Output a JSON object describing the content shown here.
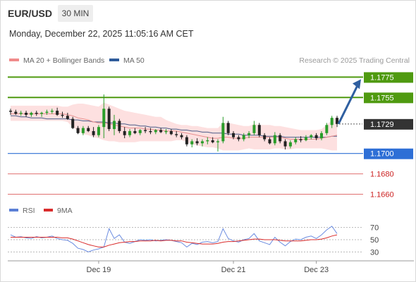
{
  "header": {
    "symbol": "EUR/USD",
    "timeframe": "30 MIN",
    "datetime": "Monday, December 22, 2025 11:05:16 AM CET",
    "credit": "Research © 2025 Trading Central"
  },
  "legend": {
    "ma20_label": "MA 20 + Bollinger Bands",
    "ma50_label": "MA 50",
    "ma20_color": "#f08a8a",
    "ma50_color": "#2e5b9a"
  },
  "rsi_legend": {
    "rsi_label": "RSI",
    "ma9_label": "9MA",
    "rsi_color": "#5b7fd6",
    "ma9_color": "#d92b2b"
  },
  "colors": {
    "up": "#2a9d2a",
    "down": "#222222",
    "target": "#4f9a10",
    "pivot": "#2e6fd6",
    "support": "#e07070",
    "arrow": "#2f5fa0",
    "current": "#333333"
  },
  "chart_data": [
    {
      "type": "line",
      "title": "EUR/USD",
      "series_type": "candlestick",
      "ylim": [
        1.1652,
        1.1785
      ],
      "xtick_labels": [
        "Dec 19",
        "Dec 21",
        "Dec 23"
      ],
      "xtick_positions": [
        17,
        43,
        59
      ],
      "candles": [
        [
          1.1742,
          1.1744,
          1.1738,
          1.1741
        ],
        [
          1.1741,
          1.1743,
          1.1738,
          1.1739
        ],
        [
          1.1739,
          1.1742,
          1.1737,
          1.174
        ],
        [
          1.174,
          1.1742,
          1.1736,
          1.1738
        ],
        [
          1.1738,
          1.1741,
          1.1736,
          1.174
        ],
        [
          1.174,
          1.1742,
          1.1737,
          1.1739
        ],
        [
          1.1739,
          1.1741,
          1.1736,
          1.174
        ],
        [
          1.174,
          1.1743,
          1.1738,
          1.1741
        ],
        [
          1.1741,
          1.1744,
          1.1739,
          1.1742
        ],
        [
          1.1742,
          1.1745,
          1.1737,
          1.1738
        ],
        [
          1.1738,
          1.1741,
          1.1735,
          1.1737
        ],
        [
          1.1737,
          1.174,
          1.1733,
          1.1734
        ],
        [
          1.1734,
          1.1736,
          1.1724,
          1.1725
        ],
        [
          1.1725,
          1.1727,
          1.1719,
          1.172
        ],
        [
          1.172,
          1.1727,
          1.1718,
          1.1725
        ],
        [
          1.1725,
          1.1727,
          1.1721,
          1.1722
        ],
        [
          1.1722,
          1.1726,
          1.1716,
          1.1718
        ],
        [
          1.1718,
          1.1728,
          1.1716,
          1.1726
        ],
        [
          1.1726,
          1.1758,
          1.1715,
          1.1744
        ],
        [
          1.1744,
          1.1746,
          1.1722,
          1.1724
        ],
        [
          1.1724,
          1.1738,
          1.1718,
          1.1732
        ],
        [
          1.1732,
          1.1734,
          1.172,
          1.1722
        ],
        [
          1.1722,
          1.1726,
          1.1715,
          1.1718
        ],
        [
          1.1718,
          1.1724,
          1.1716,
          1.1722
        ],
        [
          1.1722,
          1.1725,
          1.1719,
          1.172
        ],
        [
          1.172,
          1.1724,
          1.1718,
          1.1723
        ],
        [
          1.1723,
          1.1726,
          1.172,
          1.1722
        ],
        [
          1.1722,
          1.1725,
          1.1719,
          1.1721
        ],
        [
          1.1721,
          1.1724,
          1.1719,
          1.1723
        ],
        [
          1.1723,
          1.1725,
          1.172,
          1.1721
        ],
        [
          1.1721,
          1.1724,
          1.1719,
          1.1722
        ],
        [
          1.1722,
          1.1724,
          1.1718,
          1.1719
        ],
        [
          1.1719,
          1.1722,
          1.1716,
          1.1718
        ],
        [
          1.1718,
          1.172,
          1.1714,
          1.1716
        ],
        [
          1.1716,
          1.1718,
          1.1707,
          1.1709
        ],
        [
          1.1709,
          1.1714,
          1.1706,
          1.1712
        ],
        [
          1.1712,
          1.1715,
          1.1708,
          1.171
        ],
        [
          1.171,
          1.1714,
          1.1707,
          1.1712
        ],
        [
          1.1712,
          1.1716,
          1.1709,
          1.1713
        ],
        [
          1.1713,
          1.1716,
          1.171,
          1.1711
        ],
        [
          1.1711,
          1.1714,
          1.1702,
          1.1712
        ],
        [
          1.1712,
          1.1736,
          1.171,
          1.173
        ],
        [
          1.173,
          1.1732,
          1.1718,
          1.172
        ],
        [
          1.172,
          1.1722,
          1.1714,
          1.1716
        ],
        [
          1.1716,
          1.1718,
          1.1712,
          1.1714
        ],
        [
          1.1714,
          1.172,
          1.1712,
          1.1718
        ],
        [
          1.1718,
          1.1722,
          1.1715,
          1.172
        ],
        [
          1.172,
          1.1732,
          1.1718,
          1.1728
        ],
        [
          1.1728,
          1.173,
          1.1716,
          1.1718
        ],
        [
          1.1718,
          1.172,
          1.1712,
          1.1714
        ],
        [
          1.1714,
          1.1716,
          1.1709,
          1.171
        ],
        [
          1.171,
          1.1721,
          1.1708,
          1.1718
        ],
        [
          1.1718,
          1.172,
          1.171,
          1.1712
        ],
        [
          1.1712,
          1.1714,
          1.1704,
          1.1707
        ],
        [
          1.1707,
          1.1713,
          1.1705,
          1.1711
        ],
        [
          1.1711,
          1.1716,
          1.1709,
          1.1714
        ],
        [
          1.1714,
          1.1717,
          1.1711,
          1.1713
        ],
        [
          1.1713,
          1.1718,
          1.1712,
          1.1716
        ],
        [
          1.1716,
          1.1719,
          1.1714,
          1.1718
        ],
        [
          1.1718,
          1.172,
          1.1713,
          1.1715
        ],
        [
          1.1715,
          1.1722,
          1.1713,
          1.172
        ],
        [
          1.172,
          1.173,
          1.1718,
          1.1728
        ],
        [
          1.1728,
          1.1737,
          1.1725,
          1.1735
        ],
        [
          1.1735,
          1.1737,
          1.1726,
          1.1729
        ]
      ],
      "ma20": [
        1.1739,
        1.1739,
        1.1739,
        1.1739,
        1.1739,
        1.1739,
        1.1739,
        1.1739,
        1.1739,
        1.1739,
        1.1739,
        1.1738,
        1.1737,
        1.1735,
        1.1734,
        1.1733,
        1.1731,
        1.173,
        1.173,
        1.1729,
        1.1728,
        1.1727,
        1.1726,
        1.1725,
        1.1725,
        1.1725,
        1.1724,
        1.1724,
        1.1723,
        1.1723,
        1.1722,
        1.1722,
        1.1722,
        1.1721,
        1.172,
        1.1719,
        1.1718,
        1.1717,
        1.1716,
        1.1715,
        1.1715,
        1.1716,
        1.1716,
        1.1715,
        1.1715,
        1.1715,
        1.1716,
        1.1716,
        1.1716,
        1.1716,
        1.1716,
        1.1716,
        1.1716,
        1.1715,
        1.1714,
        1.1714,
        1.1714,
        1.1714,
        1.1714,
        1.1714,
        1.1715,
        1.1716,
        1.1717,
        1.1718
      ],
      "bb_upper": [
        1.1747,
        1.1747,
        1.1747,
        1.1747,
        1.1747,
        1.1747,
        1.1747,
        1.1747,
        1.1747,
        1.1747,
        1.1746,
        1.1746,
        1.1748,
        1.1749,
        1.1749,
        1.1748,
        1.1747,
        1.1746,
        1.175,
        1.1748,
        1.1746,
        1.1744,
        1.1742,
        1.1741,
        1.174,
        1.1739,
        1.1738,
        1.1737,
        1.1736,
        1.1736,
        1.1733,
        1.1731,
        1.1729,
        1.1728,
        1.1728,
        1.1727,
        1.1727,
        1.1726,
        1.1725,
        1.1725,
        1.1725,
        1.173,
        1.173,
        1.1729,
        1.1728,
        1.1727,
        1.1727,
        1.1729,
        1.1728,
        1.1728,
        1.1728,
        1.1727,
        1.1727,
        1.1726,
        1.1725,
        1.1724,
        1.1723,
        1.1723,
        1.1723,
        1.1723,
        1.1724,
        1.1728,
        1.1733,
        1.1736
      ],
      "bb_lower": [
        1.1732,
        1.1732,
        1.1732,
        1.1732,
        1.1732,
        1.1732,
        1.1732,
        1.1732,
        1.1732,
        1.1732,
        1.1732,
        1.1731,
        1.1726,
        1.1722,
        1.1719,
        1.1718,
        1.1716,
        1.1715,
        1.1713,
        1.1712,
        1.1712,
        1.1711,
        1.1711,
        1.1711,
        1.1711,
        1.1712,
        1.1712,
        1.1712,
        1.1712,
        1.1712,
        1.1712,
        1.1712,
        1.1713,
        1.1713,
        1.1711,
        1.1709,
        1.1708,
        1.1707,
        1.1706,
        1.1706,
        1.1705,
        1.1703,
        1.1703,
        1.1703,
        1.1703,
        1.1704,
        1.1705,
        1.1704,
        1.1704,
        1.1704,
        1.1704,
        1.1705,
        1.1705,
        1.1704,
        1.1704,
        1.1705,
        1.1705,
        1.1705,
        1.1705,
        1.1705,
        1.1705,
        1.1704,
        1.1703,
        1.1703
      ],
      "ma50": [
        1.1737,
        1.1737,
        1.1736,
        1.1736,
        1.1735,
        1.1735,
        1.1735,
        1.1734,
        1.1734,
        1.1734,
        1.1734,
        1.1734,
        1.1733,
        1.1733,
        1.1732,
        1.1732,
        1.1731,
        1.1731,
        1.1731,
        1.173,
        1.173,
        1.1729,
        1.1729,
        1.1728,
        1.1728,
        1.1727,
        1.1727,
        1.1726,
        1.1726,
        1.1725,
        1.1725,
        1.1724,
        1.1724,
        1.1723,
        1.1723,
        1.1722,
        1.1722,
        1.1721,
        1.1721,
        1.172,
        1.172,
        1.172,
        1.1719,
        1.1719,
        1.1719,
        1.1718,
        1.1718,
        1.1718,
        1.1718,
        1.1717,
        1.1717,
        1.1717,
        1.1717,
        1.1716,
        1.1716,
        1.1716,
        1.1716,
        1.1716,
        1.1716,
        1.1716,
        1.1716,
        1.1716,
        1.1717,
        1.1717
      ],
      "levels": [
        {
          "value": 1.1775,
          "label": "1.1775",
          "role": "target"
        },
        {
          "value": 1.1755,
          "label": "1.1755",
          "role": "target"
        },
        {
          "value": 1.1729,
          "label": "1.1729",
          "role": "current"
        },
        {
          "value": 1.17,
          "label": "1.1700",
          "role": "pivot"
        },
        {
          "value": 1.168,
          "label": "1.1680",
          "role": "support"
        },
        {
          "value": 1.166,
          "label": "1.1660",
          "role": "support"
        }
      ],
      "forecast_arrow": {
        "from": 1.1729,
        "to": 1.1773
      }
    },
    {
      "type": "line",
      "title": "RSI",
      "ylim": [
        20,
        80
      ],
      "yticks": [
        70,
        50,
        30
      ],
      "ytick_labels": [
        "70",
        "50",
        "30"
      ],
      "series": [
        {
          "name": "RSI",
          "values": [
            58,
            54,
            55,
            53,
            52,
            55,
            53,
            54,
            56,
            52,
            50,
            49,
            44,
            36,
            34,
            30,
            33,
            35,
            38,
            68,
            52,
            58,
            46,
            44,
            47,
            50,
            49,
            50,
            48,
            49,
            50,
            49,
            47,
            45,
            38,
            44,
            42,
            46,
            47,
            45,
            47,
            68,
            52,
            48,
            46,
            50,
            52,
            60,
            48,
            45,
            42,
            54,
            46,
            40,
            47,
            51,
            50,
            54,
            56,
            52,
            58,
            66,
            72,
            60
          ]
        },
        {
          "name": "9MA",
          "values": [
            54,
            54,
            54,
            54,
            54,
            54,
            54,
            54,
            54,
            54,
            53,
            53,
            51,
            48,
            45,
            42,
            40,
            38,
            38,
            41,
            43,
            45,
            46,
            47,
            47,
            48,
            48,
            48,
            49,
            48,
            49,
            49,
            48,
            48,
            46,
            45,
            44,
            43,
            43,
            43,
            44,
            46,
            47,
            47,
            48,
            49,
            50,
            51,
            51,
            50,
            50,
            50,
            49,
            48,
            48,
            48,
            48,
            49,
            50,
            50,
            51,
            53,
            56,
            58
          ]
        }
      ]
    }
  ]
}
